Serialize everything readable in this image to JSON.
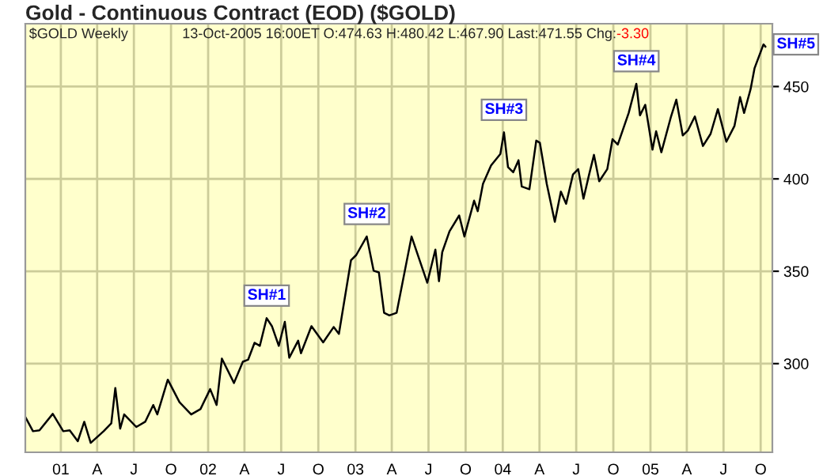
{
  "chart_data": {
    "type": "line",
    "title": "Gold - Continuous Contract (EOD) ($GOLD)",
    "annotations": [
      "$GOLD Weekly",
      "13-Oct-2005 16:00ET O:474.63 H:480.42 L:467.90 Last:471.55 Chg:",
      "-3.30",
      {
        "text": "SH#1",
        "x": "2002-05-26",
        "y": 324.6
      },
      {
        "text": "SH#2",
        "x": "2003-01-29",
        "y": 368.8
      },
      {
        "text": "SH#3",
        "x": "2004-01-04",
        "y": 425.2
      },
      {
        "text": "SH#4",
        "x": "2004-11-27",
        "y": 451.5
      },
      {
        "text": "SH#5",
        "x": "2005-10-08",
        "y": 472.8
      }
    ],
    "x": [
      "2000-10-05",
      "2000-10-24",
      "2000-11-09",
      "2000-12-12",
      "2001-01-07",
      "2001-01-23",
      "2001-02-12",
      "2001-02-28",
      "2001-03-16",
      "2001-04-17",
      "2001-05-06",
      "2001-05-16",
      "2001-05-28",
      "2001-06-07",
      "2001-07-07",
      "2001-07-29",
      "2001-08-18",
      "2001-08-28",
      "2001-09-23",
      "2001-10-22",
      "2001-11-20",
      "2001-12-13",
      "2002-01-06",
      "2002-01-22",
      "2002-02-04",
      "2002-03-06",
      "2002-03-28",
      "2002-04-10",
      "2002-04-26",
      "2002-05-09",
      "2002-05-26",
      "2002-06-08",
      "2002-06-25",
      "2002-07-10",
      "2002-07-21",
      "2002-08-12",
      "2002-08-19",
      "2002-09-14",
      "2002-10-13",
      "2002-11-08",
      "2002-11-21",
      "2002-12-21",
      "2003-01-03",
      "2003-01-29",
      "2003-02-15",
      "2003-02-28",
      "2003-03-13",
      "2003-03-26",
      "2003-04-13",
      "2003-05-20",
      "2003-06-09",
      "2003-06-28",
      "2003-07-18",
      "2003-07-27",
      "2003-08-04",
      "2003-08-22",
      "2003-09-15",
      "2003-09-28",
      "2003-10-22",
      "2003-10-31",
      "2003-11-13",
      "2003-12-03",
      "2003-12-26",
      "2004-01-04",
      "2004-01-14",
      "2004-01-27",
      "2004-02-09",
      "2004-02-17",
      "2004-03-07",
      "2004-03-24",
      "2004-04-02",
      "2004-04-19",
      "2004-05-09",
      "2004-05-24",
      "2004-06-06",
      "2004-06-23",
      "2004-07-06",
      "2004-07-19",
      "2004-08-02",
      "2004-08-14",
      "2004-08-27",
      "2004-09-16",
      "2004-09-29",
      "2004-10-12",
      "2004-11-08",
      "2004-11-27",
      "2004-12-06",
      "2004-12-19",
      "2005-01-06",
      "2005-01-15",
      "2005-01-28",
      "2005-02-21",
      "2005-03-06",
      "2005-03-22",
      "2005-04-04",
      "2005-04-21",
      "2005-05-11",
      "2005-05-30",
      "2005-06-17",
      "2005-07-08",
      "2005-07-28",
      "2005-08-11",
      "2005-08-21",
      "2005-09-06",
      "2005-09-16",
      "2005-10-08",
      "2005-10-13"
    ],
    "series": [
      {
        "color": "#000000",
        "values": [
          271.1,
          263.4,
          263.9,
          272.8,
          263.4,
          263.9,
          258,
          268.5,
          257.1,
          263.4,
          267.7,
          286.8,
          264.8,
          272.5,
          265.7,
          268.5,
          277.6,
          272.5,
          291.3,
          279.1,
          272.5,
          275.4,
          286.2,
          277.6,
          302.7,
          289.5,
          301,
          302.1,
          311.3,
          309.6,
          324.6,
          320.3,
          309.6,
          322.6,
          303.2,
          312.4,
          305.6,
          320.3,
          311.5,
          319.8,
          316.1,
          356,
          358.8,
          368.8,
          350.3,
          349.4,
          327.5,
          326.1,
          327.5,
          368.8,
          356,
          343.8,
          361.7,
          344.6,
          360.3,
          371.6,
          380.2,
          368.8,
          388.2,
          382.5,
          397.3,
          407.3,
          413.5,
          425.2,
          406.4,
          403.6,
          410.1,
          395.9,
          394.4,
          420.7,
          419.5,
          397.3,
          376.8,
          393.1,
          386.5,
          402.4,
          405.3,
          389.3,
          402.4,
          413,
          398.7,
          405.3,
          421.5,
          418.6,
          435.7,
          451.5,
          434.4,
          440.1,
          415.8,
          425.8,
          414.4,
          433.8,
          442.9,
          423.5,
          426.3,
          433.8,
          417.8,
          424.4,
          437.8,
          420.1,
          428.6,
          444.3,
          435.7,
          448.5,
          460,
          472.8,
          471.55
        ]
      }
    ],
    "xlim": [
      "2000-10-05",
      "2005-10-30"
    ],
    "xticks": [
      {
        "value": "2001-01-01",
        "label": "01"
      },
      {
        "value": "2001-04-01",
        "label": "A"
      },
      {
        "value": "2001-07-01",
        "label": "J"
      },
      {
        "value": "2001-10-01",
        "label": "O"
      },
      {
        "value": "2002-01-01",
        "label": "02"
      },
      {
        "value": "2002-04-01",
        "label": "A"
      },
      {
        "value": "2002-07-01",
        "label": "J"
      },
      {
        "value": "2002-10-01",
        "label": "O"
      },
      {
        "value": "2003-01-01",
        "label": "03"
      },
      {
        "value": "2003-04-01",
        "label": "A"
      },
      {
        "value": "2003-07-01",
        "label": "J"
      },
      {
        "value": "2003-10-01",
        "label": "O"
      },
      {
        "value": "2004-01-01",
        "label": "04"
      },
      {
        "value": "2004-04-01",
        "label": "A"
      },
      {
        "value": "2004-07-01",
        "label": "J"
      },
      {
        "value": "2004-10-01",
        "label": "O"
      },
      {
        "value": "2005-01-01",
        "label": "05"
      },
      {
        "value": "2005-04-01",
        "label": "A"
      },
      {
        "value": "2005-07-01",
        "label": "J"
      },
      {
        "value": "2005-10-01",
        "label": "O"
      }
    ],
    "ylim": [
      252,
      484
    ],
    "yticks": [
      300,
      350,
      400,
      450
    ],
    "grid": true,
    "legend": false,
    "marker": "none",
    "line_style": "solid"
  }
}
